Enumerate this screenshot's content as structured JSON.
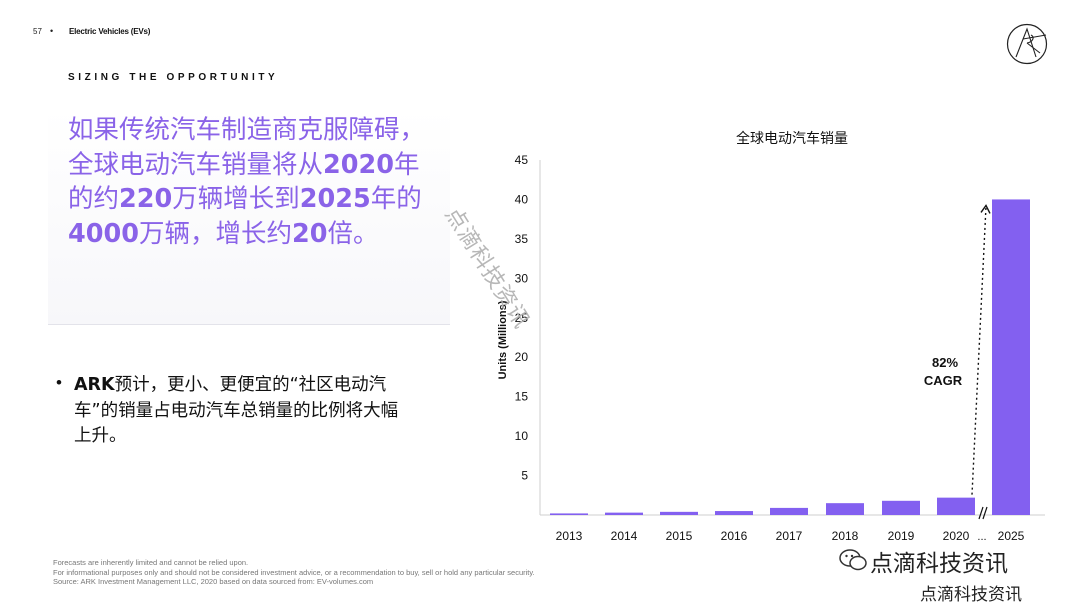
{
  "header": {
    "page_number": "57",
    "separator": "•",
    "section": "Electric Vehicles (EVs)"
  },
  "eyebrow": "SIZING THE OPPORTUNITY",
  "headline": {
    "p1": "如果传统汽车制造商克服障碍，全球电动汽车销量将从",
    "n1": "2020",
    "p2": "年的约",
    "n2": "220",
    "p3": "万辆增长到",
    "n3": "2025",
    "p4": "年的",
    "n4": "4000",
    "p5": "万辆，增长约",
    "n5": "20",
    "p6": "倍。"
  },
  "bullet": {
    "marker": "•",
    "brand": "ARK",
    "text": "预计，更小、更便宜的“社区电动汽车”的销量占电动汽车总销量的比例将大幅上升。"
  },
  "chart_data": {
    "type": "bar",
    "title": "全球电动汽车销量",
    "ylabel": "Units (Millions)",
    "xlabel": "",
    "categories": [
      "2013",
      "2014",
      "2015",
      "2016",
      "2017",
      "2018",
      "2019",
      "2020",
      "2025"
    ],
    "values": [
      0.2,
      0.3,
      0.4,
      0.5,
      0.9,
      1.5,
      1.8,
      2.2,
      40
    ],
    "ylim": [
      0,
      45
    ],
    "yticks": [
      5,
      10,
      15,
      20,
      25,
      30,
      35,
      40,
      45
    ],
    "axis_break_label": "...",
    "annotation": {
      "line1": "82%",
      "line2": "CAGR"
    },
    "color": "#8360f0"
  },
  "footnotes": [
    "Forecasts are inherently limited and cannot be relied upon.",
    "For informational purposes only and should not be considered investment advice, or a recommendation to buy, sell or hold any particular security.",
    "Source: ARK Investment Management LLC, 2020 based on data sourced from: EV-volumes.com"
  ],
  "watermark": {
    "diagonal": "点滴科技资讯",
    "wechat": "点滴科技资讯",
    "bottom": "点滴科技资讯"
  },
  "colors": {
    "accent": "#8a63e8",
    "bar": "#8360f0"
  }
}
